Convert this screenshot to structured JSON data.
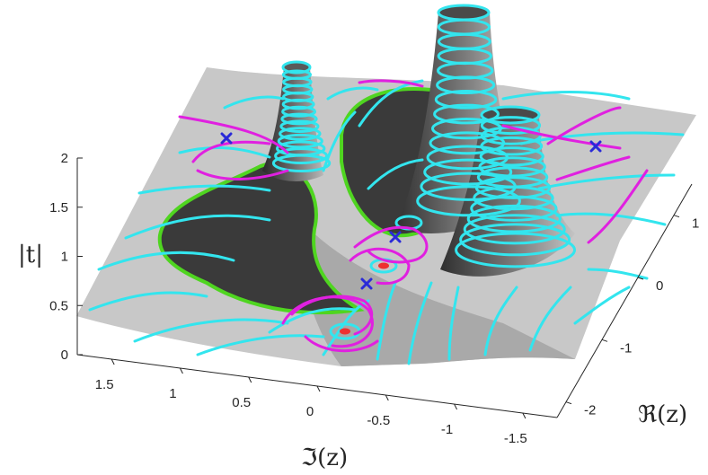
{
  "chart_data": {
    "type": "surface",
    "title": "",
    "zlabel": "|t|",
    "xlabel": "ℑ(z)",
    "ylabel": "ℜ(z)",
    "z_ticks": [
      "0",
      "0.5",
      "1",
      "1.5",
      "2"
    ],
    "x_ticks": [
      "1.5",
      "1",
      "0.5",
      "0",
      "-0.5",
      "-1",
      "-1.5"
    ],
    "y_ticks": [
      "1",
      "0",
      "-1",
      "-2"
    ],
    "zlim": [
      0,
      2
    ],
    "xlim": [
      1.75,
      -1.75
    ],
    "ylim": [
      -2.25,
      1.5
    ],
    "surface_color": "#c8c8c8",
    "dark_region_color": "#3a3a3a",
    "contour_colors": {
      "level_curves": "#33e5ee",
      "phase_curves": "#e020e0",
      "boundary": "#4fd520"
    },
    "marker_colors": {
      "saddle": "#2a2ad8",
      "zero": "#ee3030"
    },
    "saddle_point_count": 4,
    "zero_point_count": 2,
    "pole_count": 3
  }
}
